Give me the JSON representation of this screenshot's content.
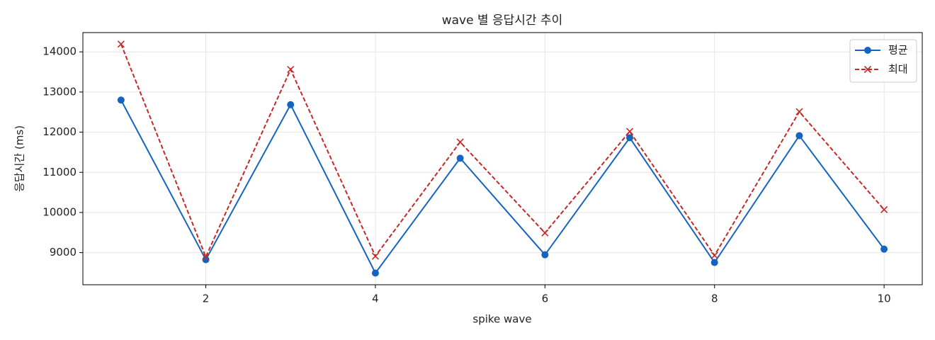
{
  "chart_data": {
    "type": "line",
    "title": "wave 별 응답시간 추이",
    "x_label": "spike wave",
    "y_label": "응답시간 (ms)",
    "x": [
      1,
      2,
      3,
      4,
      5,
      6,
      7,
      8,
      9,
      10
    ],
    "series": [
      {
        "name": "평균",
        "color": "#1565c0",
        "marker": "o",
        "linestyle": "solid",
        "values": [
          12800,
          8825,
          12684,
          8491,
          11351,
          8947,
          11860,
          8754,
          11912,
          9088
        ]
      },
      {
        "name": "최대",
        "color": "#c62828",
        "marker": "x",
        "linestyle": "dashed",
        "values": [
          14193,
          8895,
          13561,
          8912,
          11754,
          9491,
          12018,
          8930,
          12509,
          10070
        ]
      }
    ],
    "xlim": [
      0.55,
      10.45
    ],
    "xticks": [
      2,
      4,
      6,
      8,
      10
    ],
    "ylim": [
      8200,
      14480
    ],
    "yticks": [
      9000,
      10000,
      11000,
      12000,
      13000,
      14000
    ],
    "grid": true,
    "legend": "upper right"
  }
}
